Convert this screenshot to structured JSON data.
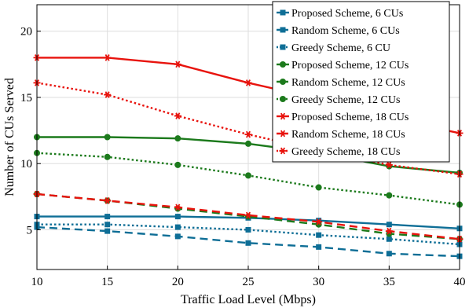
{
  "chart_data": {
    "type": "line",
    "title": "",
    "xlabel": "Traffic Load Level (Mbps)",
    "ylabel": "Number of CUs Served",
    "x": [
      10,
      15,
      20,
      25,
      30,
      35,
      40
    ],
    "xlim": [
      10,
      40
    ],
    "ylim": [
      2,
      22
    ],
    "xticks": [
      "10",
      "15",
      "20",
      "25",
      "30",
      "35",
      "40"
    ],
    "yticks": [
      "5",
      "10",
      "15",
      "20"
    ],
    "grid": true,
    "legend_position": "top-right",
    "series": [
      {
        "name": "Proposed Scheme, 6 CUs",
        "color": "#0e6e96",
        "line": "solid",
        "marker": "square",
        "values": [
          6.0,
          6.0,
          6.0,
          5.9,
          5.7,
          5.4,
          5.1
        ]
      },
      {
        "name": "Random Scheme, 6 CUs",
        "color": "#0e6e96",
        "line": "dashed",
        "marker": "square",
        "values": [
          5.2,
          4.9,
          4.5,
          4.0,
          3.7,
          3.2,
          3.0
        ]
      },
      {
        "name": "Greedy Scheme, 6 CU",
        "color": "#0e6e96",
        "line": "dotted",
        "marker": "square",
        "values": [
          5.4,
          5.4,
          5.2,
          5.0,
          4.6,
          4.3,
          3.9
        ]
      },
      {
        "name": "Proposed Scheme, 12 CUs",
        "color": "#1c7a1c",
        "line": "solid",
        "marker": "circle",
        "values": [
          12.0,
          12.0,
          11.9,
          11.5,
          10.8,
          9.8,
          9.3
        ]
      },
      {
        "name": "Random Scheme, 12 CUs",
        "color": "#1c7a1c",
        "line": "dashed",
        "marker": "circle",
        "values": [
          7.7,
          7.2,
          6.6,
          6.0,
          5.4,
          4.7,
          4.3
        ]
      },
      {
        "name": "Greedy Scheme, 12 CUs",
        "color": "#1c7a1c",
        "line": "dotted",
        "marker": "circle",
        "values": [
          10.8,
          10.5,
          9.9,
          9.1,
          8.2,
          7.6,
          6.9
        ]
      },
      {
        "name": "Proposed Scheme, 18 CUs",
        "color": "#e8130d",
        "line": "solid",
        "marker": "star",
        "values": [
          18.0,
          18.0,
          17.5,
          16.1,
          14.9,
          13.4,
          12.3
        ]
      },
      {
        "name": "Random Scheme, 18 CUs",
        "color": "#e8130d",
        "line": "dashed",
        "marker": "star",
        "values": [
          7.7,
          7.2,
          6.7,
          6.1,
          5.6,
          4.9,
          4.3
        ]
      },
      {
        "name": "Greedy Scheme, 18 CUs",
        "color": "#e8130d",
        "line": "dotted",
        "marker": "star",
        "values": [
          16.1,
          15.2,
          13.6,
          12.2,
          11.0,
          9.9,
          9.2
        ]
      }
    ]
  }
}
